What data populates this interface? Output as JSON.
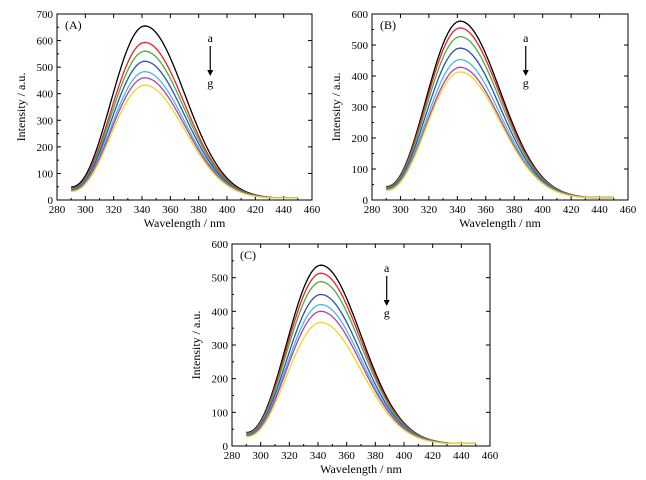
{
  "chart_data": [
    {
      "type": "line",
      "panel_label": "(A)",
      "xlabel": "Wavelength / nm",
      "ylabel": "Intensity / a.u.",
      "xlim": [
        280,
        460
      ],
      "ylim": [
        0,
        700
      ],
      "xticks": [
        280,
        300,
        320,
        340,
        360,
        380,
        400,
        420,
        440,
        460
      ],
      "yticks": [
        0,
        100,
        200,
        300,
        400,
        500,
        600,
        700
      ],
      "x_range": [
        290,
        450
      ],
      "peak_x": 342,
      "start_ratio": 0.075,
      "end_value": 8,
      "arrow": {
        "top": "a",
        "bottom": "g"
      },
      "series": [
        {
          "peak": 655,
          "color": "#000000"
        },
        {
          "peak": 593,
          "color": "#e8212a"
        },
        {
          "peak": 560,
          "color": "#4caf3c"
        },
        {
          "peak": 522,
          "color": "#2b4fb5"
        },
        {
          "peak": 483,
          "color": "#4ab8e0"
        },
        {
          "peak": 460,
          "color": "#b040b0"
        },
        {
          "peak": 432,
          "color": "#e8d820"
        }
      ]
    },
    {
      "type": "line",
      "panel_label": "(B)",
      "xlabel": "Wavelength / nm",
      "ylabel": "Intensity / a.u.",
      "xlim": [
        280,
        460
      ],
      "ylim": [
        0,
        600
      ],
      "xticks": [
        280,
        300,
        320,
        340,
        360,
        380,
        400,
        420,
        440,
        460
      ],
      "yticks": [
        0,
        100,
        200,
        300,
        400,
        500,
        600
      ],
      "x_range": [
        290,
        450
      ],
      "peak_x": 342,
      "start_ratio": 0.075,
      "end_value": 8,
      "arrow": {
        "top": "a",
        "bottom": "g"
      },
      "series": [
        {
          "peak": 577,
          "color": "#000000"
        },
        {
          "peak": 555,
          "color": "#e8212a"
        },
        {
          "peak": 527,
          "color": "#4caf3c"
        },
        {
          "peak": 490,
          "color": "#2b4fb5"
        },
        {
          "peak": 453,
          "color": "#4ab8e0"
        },
        {
          "peak": 428,
          "color": "#b040b0"
        },
        {
          "peak": 413,
          "color": "#e8d820"
        }
      ]
    },
    {
      "type": "line",
      "panel_label": "(C)",
      "xlabel": "Wavelength / nm",
      "ylabel": "Intensity / a.u.",
      "xlim": [
        280,
        460
      ],
      "ylim": [
        0,
        600
      ],
      "xticks": [
        280,
        300,
        320,
        340,
        360,
        380,
        400,
        420,
        440,
        460
      ],
      "yticks": [
        0,
        100,
        200,
        300,
        400,
        500,
        600
      ],
      "x_range": [
        290,
        450
      ],
      "peak_x": 342,
      "start_ratio": 0.075,
      "end_value": 8,
      "arrow": {
        "top": "a",
        "bottom": "g"
      },
      "series": [
        {
          "peak": 537,
          "color": "#000000"
        },
        {
          "peak": 513,
          "color": "#e8212a"
        },
        {
          "peak": 488,
          "color": "#4caf3c"
        },
        {
          "peak": 450,
          "color": "#2b4fb5"
        },
        {
          "peak": 420,
          "color": "#4ab8e0"
        },
        {
          "peak": 400,
          "color": "#b040b0"
        },
        {
          "peak": 367,
          "color": "#e8d820"
        }
      ]
    }
  ]
}
